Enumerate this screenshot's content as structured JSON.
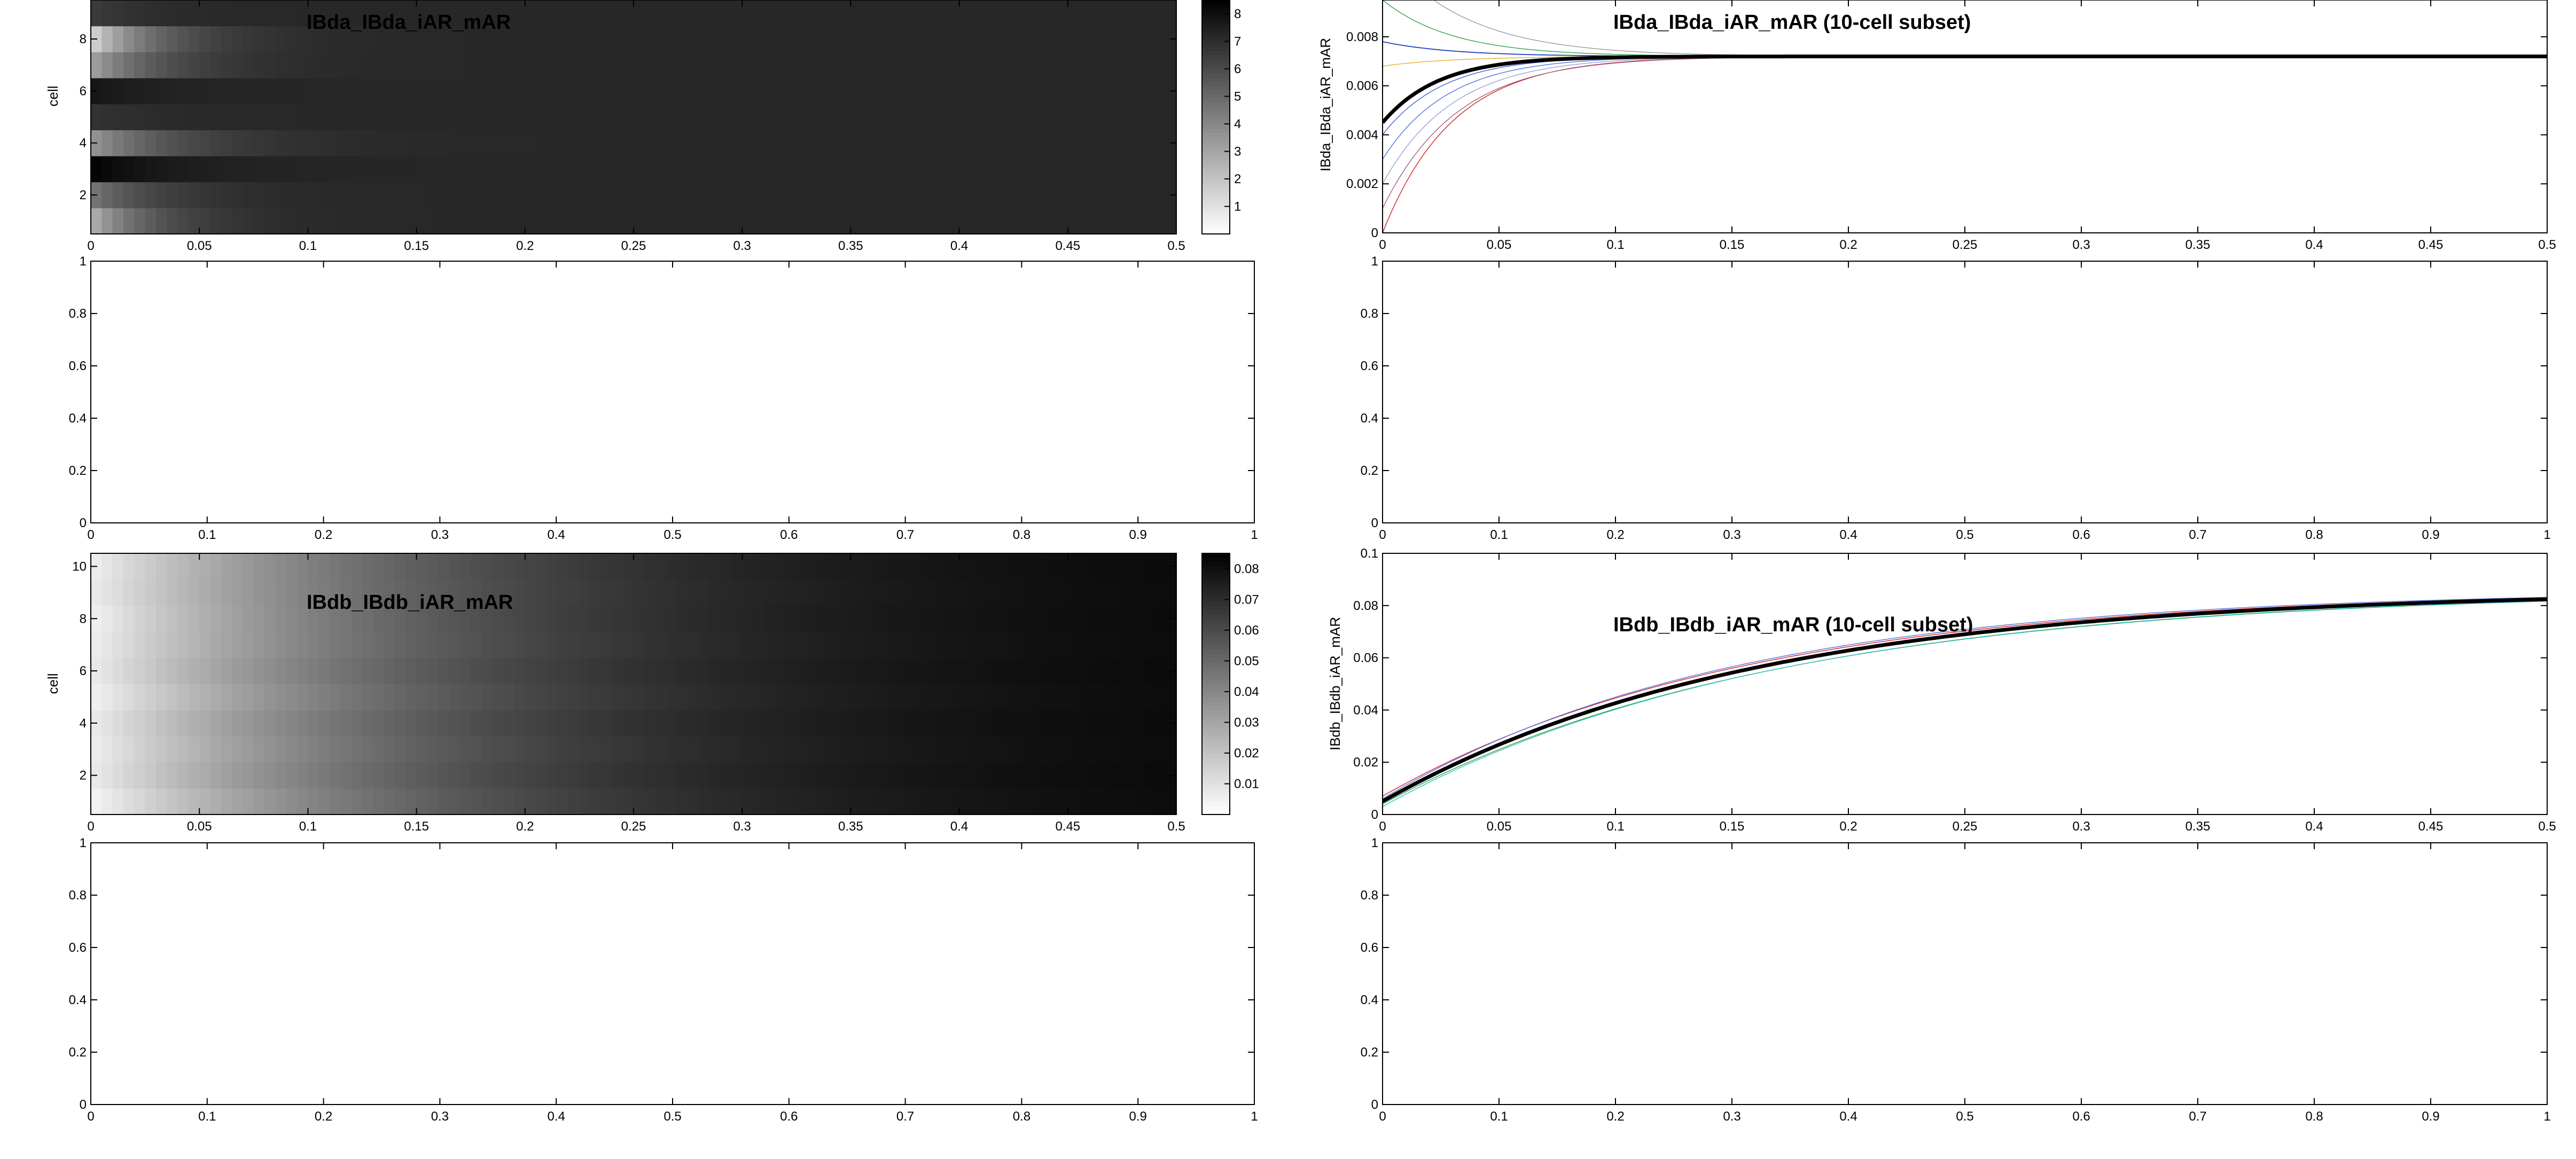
{
  "chart_data": [
    {
      "id": "hm1",
      "type": "heatmap",
      "title": "IBda_IBda_iAR_mAR",
      "ylabel": "cell",
      "xlim": [
        0,
        0.5
      ],
      "ylim": [
        0.5,
        9.5
      ],
      "xticks": [
        "0",
        "0.05",
        "0.1",
        "0.15",
        "0.2",
        "0.25",
        "0.3",
        "0.35",
        "0.4",
        "0.45",
        "0.5"
      ],
      "yticks": [
        "2",
        "4",
        "6",
        "8"
      ],
      "colorbar": {
        "lim": [
          0,
          8.5
        ],
        "ticks": [
          "1",
          "2",
          "3",
          "4",
          "5",
          "6",
          "7",
          "8"
        ]
      },
      "colormap": "gray (white = low, black = high)",
      "steady_value": 7.2,
      "rows": [
        {
          "cell": 1,
          "start": 2.5,
          "tau": 0.028
        },
        {
          "cell": 2,
          "start": 4.5,
          "tau": 0.03
        },
        {
          "cell": 3,
          "start": 8.4,
          "tau": 0.035
        },
        {
          "cell": 4,
          "start": 3.4,
          "tau": 0.038
        },
        {
          "cell": 5,
          "start": 6.8,
          "tau": 0.03
        },
        {
          "cell": 6,
          "start": 7.8,
          "tau": 0.028
        },
        {
          "cell": 7,
          "start": 3.0,
          "tau": 0.032
        },
        {
          "cell": 8,
          "start": 1.2,
          "tau": 0.03
        },
        {
          "cell": 9,
          "start": 6.5,
          "tau": 0.025
        }
      ]
    },
    {
      "id": "ln1",
      "type": "line",
      "title": "IBda_IBda_iAR_mAR (10-cell subset)",
      "ylabel": "IBda_IBda_iAR_mAR",
      "xlim": [
        0,
        0.5
      ],
      "ylim": [
        0,
        0.0095
      ],
      "xticks": [
        "0",
        "0.05",
        "0.1",
        "0.15",
        "0.2",
        "0.25",
        "0.3",
        "0.35",
        "0.4",
        "0.45",
        "0.5"
      ],
      "yticks": [
        "0",
        "0.002",
        "0.004",
        "0.006",
        "0.008"
      ],
      "steady_value": 0.0072,
      "series": [
        {
          "start": 0.0,
          "tau": 0.03,
          "color": "#d62020",
          "width": 1.4
        },
        {
          "start": 0.003,
          "tau": 0.028,
          "color": "#5470e0",
          "width": 1.4
        },
        {
          "start": 0.001,
          "tau": 0.032,
          "color": "#a06080",
          "width": 1.4
        },
        {
          "start": 0.002,
          "tau": 0.03,
          "color": "#9aa0d8",
          "width": 1.4
        },
        {
          "start": 0.004,
          "tau": 0.026,
          "color": "#4060d0",
          "width": 1.4
        },
        {
          "start": 0.0068,
          "tau": 0.03,
          "color": "#e0b030",
          "width": 1.4
        },
        {
          "start": 0.0078,
          "tau": 0.03,
          "color": "#2040c0",
          "width": 1.8
        },
        {
          "start": 0.0115,
          "tau": 0.035,
          "color": "#999999",
          "width": 1.4
        },
        {
          "start": 0.0095,
          "tau": 0.03,
          "color": "#30a040",
          "width": 1.4
        },
        {
          "start": 0.0045,
          "tau": 0.024,
          "color": "#000000",
          "width": 7
        }
      ]
    },
    {
      "id": "e1",
      "type": "line",
      "xlim": [
        0,
        1
      ],
      "ylim": [
        0,
        1
      ],
      "xticks": [
        "0",
        "0.1",
        "0.2",
        "0.3",
        "0.4",
        "0.5",
        "0.6",
        "0.7",
        "0.8",
        "0.9",
        "1"
      ],
      "yticks": [
        "0",
        "0.2",
        "0.4",
        "0.6",
        "0.8",
        "1"
      ],
      "series": []
    },
    {
      "id": "e2",
      "type": "line",
      "xlim": [
        0,
        1
      ],
      "ylim": [
        0,
        1
      ],
      "xticks": [
        "0",
        "0.1",
        "0.2",
        "0.3",
        "0.4",
        "0.5",
        "0.6",
        "0.7",
        "0.8",
        "0.9",
        "1"
      ],
      "yticks": [
        "0",
        "0.2",
        "0.4",
        "0.6",
        "0.8",
        "1"
      ],
      "series": []
    },
    {
      "id": "hm2",
      "type": "heatmap",
      "title": "IBdb_IBdb_iAR_mAR",
      "ylabel": "cell",
      "xlim": [
        0,
        0.5
      ],
      "ylim": [
        0.5,
        10.5
      ],
      "xticks": [
        "0",
        "0.05",
        "0.1",
        "0.15",
        "0.2",
        "0.25",
        "0.3",
        "0.35",
        "0.4",
        "0.45",
        "0.5"
      ],
      "yticks": [
        "2",
        "4",
        "6",
        "8",
        "10"
      ],
      "colorbar": {
        "lim": [
          0,
          0.085
        ],
        "ticks": [
          "0.01",
          "0.02",
          "0.03",
          "0.04",
          "0.05",
          "0.06",
          "0.07",
          "0.08"
        ]
      },
      "colormap": "gray (white = low, black = high)",
      "steady_value": 0.085,
      "rows": [
        {
          "cell": 1,
          "start": 0.003,
          "tau": 0.165
        },
        {
          "cell": 2,
          "start": 0.006,
          "tau": 0.16
        },
        {
          "cell": 3,
          "start": 0.005,
          "tau": 0.165
        },
        {
          "cell": 4,
          "start": 0.006,
          "tau": 0.16
        },
        {
          "cell": 5,
          "start": 0.004,
          "tau": 0.165
        },
        {
          "cell": 6,
          "start": 0.006,
          "tau": 0.16
        },
        {
          "cell": 7,
          "start": 0.005,
          "tau": 0.165
        },
        {
          "cell": 8,
          "start": 0.004,
          "tau": 0.16
        },
        {
          "cell": 9,
          "start": 0.006,
          "tau": 0.165
        },
        {
          "cell": 10,
          "start": 0.005,
          "tau": 0.16
        }
      ]
    },
    {
      "id": "ln2",
      "type": "line",
      "title": "IBdb_IBdb_iAR_mAR (10-cell subset)",
      "ylabel": "IBdb_IBdb_iAR_mAR",
      "xlim": [
        0,
        0.5
      ],
      "ylim": [
        0,
        0.1
      ],
      "xticks": [
        "0",
        "0.05",
        "0.1",
        "0.15",
        "0.2",
        "0.25",
        "0.3",
        "0.35",
        "0.4",
        "0.45",
        "0.5"
      ],
      "yticks": [
        "0",
        "0.02",
        "0.04",
        "0.06",
        "0.08",
        "0.1"
      ],
      "steady_value": 0.086,
      "series": [
        {
          "start": 0.007,
          "tau": 0.155,
          "color": "#d62020",
          "width": 1.4
        },
        {
          "start": 0.006,
          "tau": 0.15,
          "color": "#5470e0",
          "width": 1.4
        },
        {
          "start": 0.004,
          "tau": 0.17,
          "color": "#30a040",
          "width": 1.4
        },
        {
          "start": 0.003,
          "tau": 0.168,
          "color": "#30c0c0",
          "width": 1.4
        },
        {
          "start": 0.005,
          "tau": 0.16,
          "color": "#a06080",
          "width": 1.4
        },
        {
          "start": 0.005,
          "tau": 0.16,
          "color": "#000000",
          "width": 7
        }
      ]
    },
    {
      "id": "e3",
      "type": "line",
      "xlim": [
        0,
        1
      ],
      "ylim": [
        0,
        1
      ],
      "xticks": [
        "0",
        "0.1",
        "0.2",
        "0.3",
        "0.4",
        "0.5",
        "0.6",
        "0.7",
        "0.8",
        "0.9",
        "1"
      ],
      "yticks": [
        "0",
        "0.2",
        "0.4",
        "0.6",
        "0.8",
        "1"
      ],
      "series": []
    },
    {
      "id": "e4",
      "type": "line",
      "xlim": [
        0,
        1
      ],
      "ylim": [
        0,
        1
      ],
      "xticks": [
        "0",
        "0.1",
        "0.2",
        "0.3",
        "0.4",
        "0.5",
        "0.6",
        "0.7",
        "0.8",
        "0.9",
        "1"
      ],
      "yticks": [
        "0",
        "0.2",
        "0.4",
        "0.6",
        "0.8",
        "1"
      ],
      "series": []
    }
  ]
}
